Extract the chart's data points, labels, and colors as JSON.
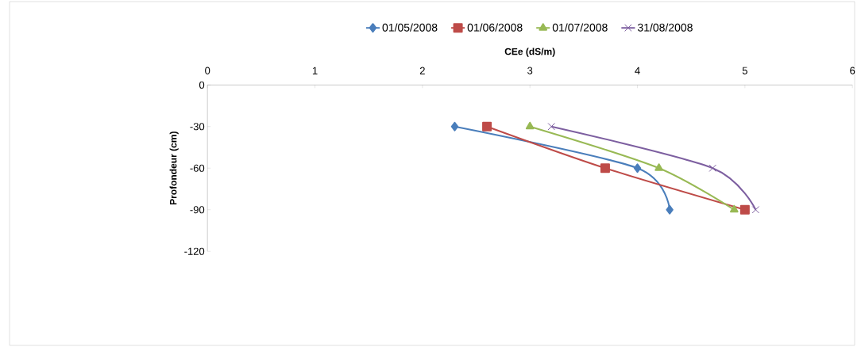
{
  "chart_data": {
    "type": "line",
    "xlabel": "CEe (dS/m)",
    "ylabel": "Profondeur (cm)",
    "series": [
      {
        "name": "01/05/2008",
        "color": "#4a7ebb",
        "marker": "diamond",
        "x": [
          2.3,
          4.0,
          4.3
        ],
        "values": [
          -30,
          -60,
          -90
        ]
      },
      {
        "name": "01/06/2008",
        "color": "#be4b48",
        "marker": "square",
        "x": [
          2.6,
          3.7,
          5.0
        ],
        "values": [
          -30,
          -60,
          -90
        ]
      },
      {
        "name": "01/07/2008",
        "color": "#98b954",
        "marker": "triangle",
        "x": [
          3.0,
          4.2,
          4.9
        ],
        "values": [
          -30,
          -60,
          -90
        ]
      },
      {
        "name": "31/08/2008",
        "color": "#7d5fa0",
        "marker": "cross",
        "x": [
          3.2,
          4.7,
          5.1
        ],
        "values": [
          -30,
          -60,
          -90
        ]
      }
    ],
    "xlim": [
      0,
      6
    ],
    "xticks": [
      0,
      1,
      2,
      3,
      4,
      5,
      6
    ],
    "ylim": [
      -120,
      0
    ],
    "yticks": [
      -120,
      -90,
      -60,
      -30,
      0
    ],
    "grid": false,
    "legend": "top"
  }
}
